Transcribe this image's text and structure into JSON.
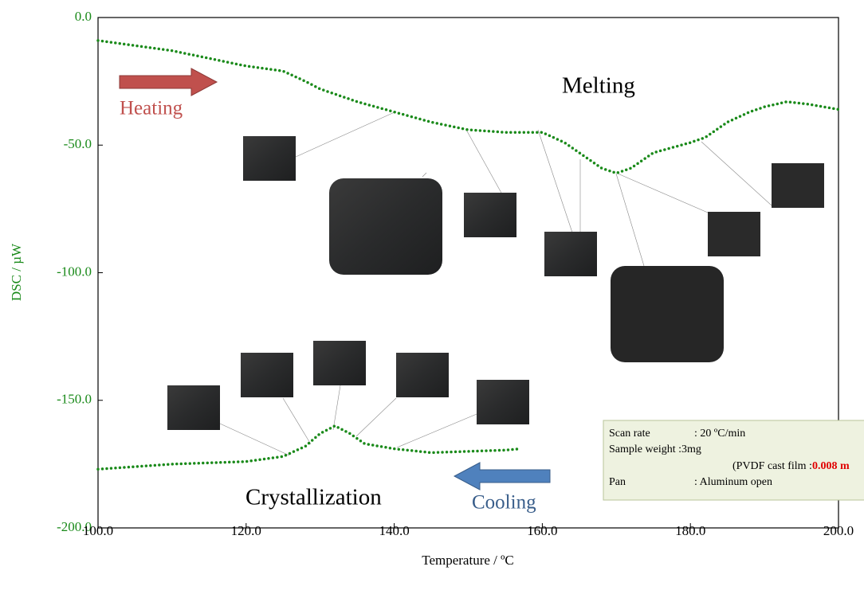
{
  "chart_data": {
    "type": "line",
    "x_label": "Temperature / ºC",
    "y_label": "DSC / µW",
    "xlim": [
      100,
      200
    ],
    "xticks": [
      {
        "value": 100,
        "label": "100.0"
      },
      {
        "value": 120,
        "label": "120.0"
      },
      {
        "value": 140,
        "label": "140.0"
      },
      {
        "value": 160,
        "label": "160.0"
      },
      {
        "value": 180,
        "label": "180.0"
      },
      {
        "value": 200,
        "label": "200.0"
      }
    ],
    "ylim": [
      -200,
      0
    ],
    "yticks": [
      {
        "value": 0,
        "label": "0.0"
      },
      {
        "value": -50,
        "label": "-50.0"
      },
      {
        "value": -100,
        "label": "-100.0"
      },
      {
        "value": -150,
        "label": "-150.0"
      },
      {
        "value": -200,
        "label": "-200.0"
      }
    ],
    "series": [
      {
        "color": "#1a8a1a",
        "x": [
          100,
          105,
          110,
          115,
          120,
          125,
          128,
          130,
          135,
          140,
          145,
          150,
          155,
          160,
          163,
          165,
          168,
          170,
          172,
          175,
          180,
          182,
          185,
          188,
          190,
          193,
          196,
          200
        ],
        "values": [
          -9,
          -11,
          -13,
          -16,
          -19,
          -21,
          -25,
          -28,
          -33,
          -37,
          -41,
          -44,
          -45,
          -45,
          -49,
          -53,
          -59,
          -61,
          -59,
          -53,
          -49,
          -47,
          -41,
          -37,
          -35,
          -33,
          -34,
          -36
        ]
      },
      {
        "color": "#1a8a1a",
        "x": [
          100,
          105,
          110,
          115,
          120,
          125,
          128,
          130,
          132,
          134,
          136,
          140,
          145,
          150,
          155,
          157
        ],
        "values": [
          -177,
          -176,
          -175,
          -174.5,
          -174,
          -172,
          -168,
          -163,
          -160,
          -163,
          -167,
          -169,
          -170.5,
          -170,
          -169.5,
          -169
        ]
      }
    ],
    "annotations": {
      "melting": "Melting",
      "crystallization": "Crystallization",
      "heating": "Heating",
      "cooling": "Cooling"
    },
    "info_box": {
      "scan_rate_label": "Scan rate",
      "scan_rate": ": 20 ºC/min",
      "sample_weight": "Sample weight :3mg",
      "film": "(PVDF cast film :",
      "thickness": "0.008 m",
      "pan_label": "Pan",
      "pan": ": Aluminum open"
    }
  }
}
